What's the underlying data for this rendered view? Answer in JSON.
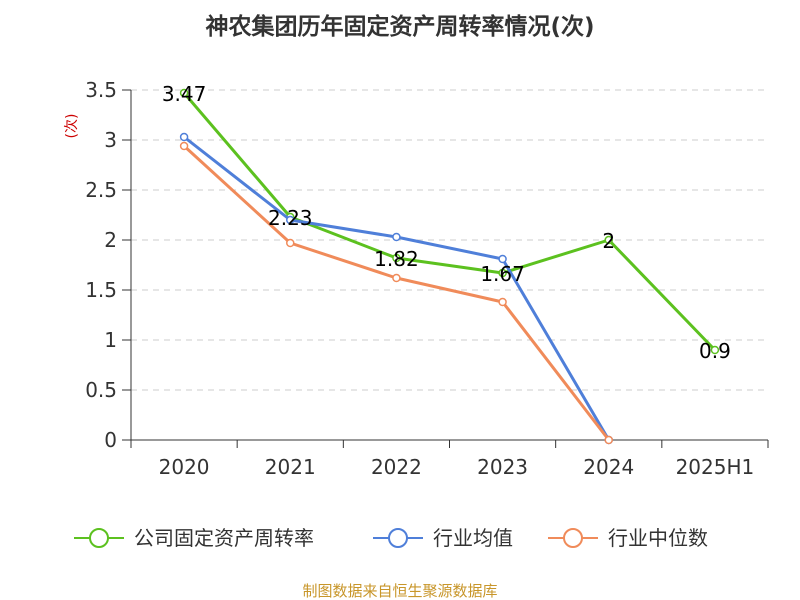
{
  "chart_data": {
    "type": "line",
    "title": "神农集团历年固定资产周转率情况(次)",
    "ylabel": "(次)",
    "xlabel": "",
    "categories": [
      "2020",
      "2021",
      "2022",
      "2023",
      "2024",
      "2025H1"
    ],
    "ylim": [
      0,
      3.5
    ],
    "yticks": [
      "0",
      "0.5",
      "1",
      "1.5",
      "2",
      "2.5",
      "3",
      "3.5"
    ],
    "grid": "horizontal-dashed",
    "legend_position": "bottom",
    "series": [
      {
        "name": "公司固定资产周转率",
        "color": "#5cc11f",
        "values": [
          3.47,
          2.23,
          1.82,
          1.67,
          2,
          0.9
        ],
        "labels": [
          "3.47",
          "2.23",
          "1.82",
          "1.67",
          "2",
          "0.9"
        ]
      },
      {
        "name": "行业均值",
        "color": "#4f7fd9",
        "values": [
          3.03,
          2.2,
          2.03,
          1.81,
          0,
          null
        ]
      },
      {
        "name": "行业中位数",
        "color": "#f08b5a",
        "values": [
          2.94,
          1.97,
          1.62,
          1.38,
          0,
          null
        ]
      }
    ],
    "source": "制图数据来自恒生聚源数据库",
    "source_color": "#c8962a",
    "ylabel_color": "#cc0000"
  }
}
